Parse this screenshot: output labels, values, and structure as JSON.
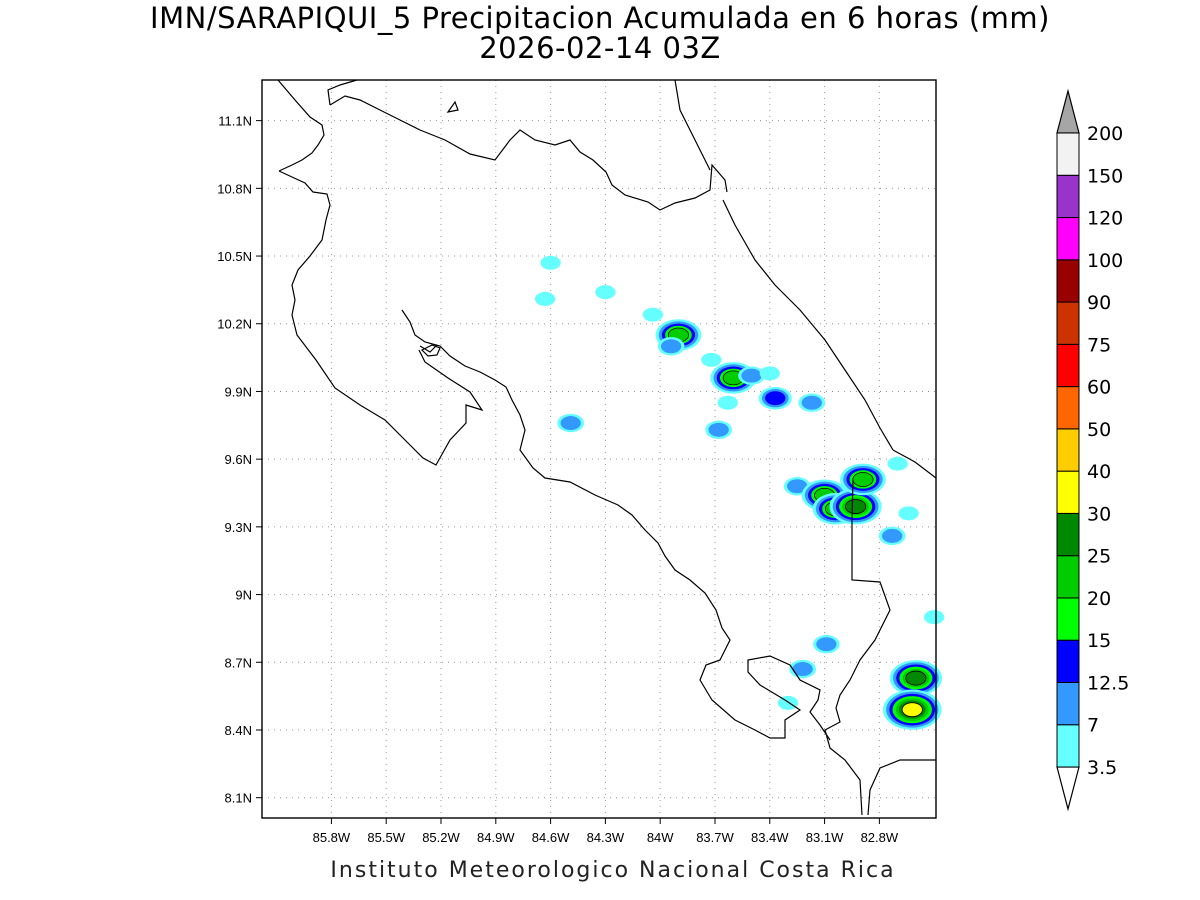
{
  "title": {
    "line1": "IMN/SARAPIQUI_5 Precipitacion Acumulada en 6 horas (mm)",
    "line2": "2026-02-14 03Z"
  },
  "footer": "Instituto Meteorologico Nacional Costa Rica",
  "map": {
    "lon_range": [
      -86.18,
      -82.49
    ],
    "lat_range": [
      8.01,
      11.28
    ],
    "grid": true,
    "lon_ticks": [
      {
        "v": -85.8,
        "label": "85.8W"
      },
      {
        "v": -85.5,
        "label": "85.5W"
      },
      {
        "v": -85.2,
        "label": "85.2W"
      },
      {
        "v": -84.9,
        "label": "84.9W"
      },
      {
        "v": -84.6,
        "label": "84.6W"
      },
      {
        "v": -84.3,
        "label": "84.3W"
      },
      {
        "v": -84.0,
        "label": "84W"
      },
      {
        "v": -83.7,
        "label": "83.7W"
      },
      {
        "v": -83.4,
        "label": "83.4W"
      },
      {
        "v": -83.1,
        "label": "83.1W"
      },
      {
        "v": -82.8,
        "label": "82.8W"
      }
    ],
    "lat_ticks": [
      {
        "v": 11.1,
        "label": "11.1N"
      },
      {
        "v": 10.8,
        "label": "10.8N"
      },
      {
        "v": 10.5,
        "label": "10.5N"
      },
      {
        "v": 10.2,
        "label": "10.2N"
      },
      {
        "v": 9.9,
        "label": "9.9N"
      },
      {
        "v": 9.6,
        "label": "9.6N"
      },
      {
        "v": 9.3,
        "label": "9.3N"
      },
      {
        "v": 9.0,
        "label": "9N"
      },
      {
        "v": 8.7,
        "label": "8.7N"
      },
      {
        "v": 8.4,
        "label": "8.4N"
      },
      {
        "v": 8.1,
        "label": "8.1N"
      }
    ]
  },
  "colorbar": {
    "levels": [
      {
        "label": "3.5",
        "color": "#66ffff"
      },
      {
        "label": "7",
        "color": "#3399ff"
      },
      {
        "label": "12.5",
        "color": "#0000ff"
      },
      {
        "label": "15",
        "color": "#00ff00"
      },
      {
        "label": "20",
        "color": "#00cc00"
      },
      {
        "label": "25",
        "color": "#008800"
      },
      {
        "label": "30",
        "color": "#ffff00"
      },
      {
        "label": "40",
        "color": "#ffcc00"
      },
      {
        "label": "50",
        "color": "#ff6600"
      },
      {
        "label": "60",
        "color": "#ff0000"
      },
      {
        "label": "75",
        "color": "#cc3300"
      },
      {
        "label": "90",
        "color": "#990000"
      },
      {
        "label": "100",
        "color": "#ff00ff"
      },
      {
        "label": "120",
        "color": "#9933cc"
      },
      {
        "label": "150",
        "color": "#f2f2f2"
      },
      {
        "label": "200",
        "color": "#a6a6a6"
      }
    ]
  },
  "chart_data": {
    "type": "heatmap",
    "title": "IMN/SARAPIQUI_5 Precipitacion Acumulada en 6 horas (mm)",
    "xlim": [
      -86.18,
      -82.49
    ],
    "ylim": [
      8.01,
      11.28
    ],
    "precip_cells": [
      {
        "lon": -84.04,
        "lat": 10.24,
        "mm": 3.5
      },
      {
        "lon": -83.9,
        "lat": 10.15,
        "mm": 20
      },
      {
        "lon": -83.94,
        "lat": 10.1,
        "mm": 7
      },
      {
        "lon": -83.72,
        "lat": 10.04,
        "mm": 3.5
      },
      {
        "lon": -83.6,
        "lat": 9.96,
        "mm": 20
      },
      {
        "lon": -83.5,
        "lat": 9.97,
        "mm": 7
      },
      {
        "lon": -83.4,
        "lat": 9.98,
        "mm": 3.5
      },
      {
        "lon": -83.63,
        "lat": 9.85,
        "mm": 3.5
      },
      {
        "lon": -83.37,
        "lat": 9.87,
        "mm": 12.5
      },
      {
        "lon": -83.68,
        "lat": 9.73,
        "mm": 7
      },
      {
        "lon": -83.17,
        "lat": 9.85,
        "mm": 7
      },
      {
        "lon": -84.49,
        "lat": 9.76,
        "mm": 7
      },
      {
        "lon": -83.25,
        "lat": 9.48,
        "mm": 7
      },
      {
        "lon": -83.1,
        "lat": 9.44,
        "mm": 20
      },
      {
        "lon": -83.04,
        "lat": 9.38,
        "mm": 20
      },
      {
        "lon": -82.93,
        "lat": 9.39,
        "mm": 25
      },
      {
        "lon": -82.89,
        "lat": 9.51,
        "mm": 20
      },
      {
        "lon": -82.7,
        "lat": 9.58,
        "mm": 3.5
      },
      {
        "lon": -82.64,
        "lat": 9.36,
        "mm": 3.5
      },
      {
        "lon": -82.73,
        "lat": 9.26,
        "mm": 7
      },
      {
        "lon": -83.09,
        "lat": 8.78,
        "mm": 7
      },
      {
        "lon": -83.22,
        "lat": 8.67,
        "mm": 7
      },
      {
        "lon": -82.6,
        "lat": 8.63,
        "mm": 25
      },
      {
        "lon": -82.62,
        "lat": 8.49,
        "mm": 30
      },
      {
        "lon": -83.3,
        "lat": 8.52,
        "mm": 3.5
      },
      {
        "lon": -82.5,
        "lat": 8.9,
        "mm": 3.5
      },
      {
        "lon": -84.6,
        "lat": 10.47,
        "mm": 3.5
      },
      {
        "lon": -84.63,
        "lat": 10.31,
        "mm": 3.5
      },
      {
        "lon": -84.3,
        "lat": 10.34,
        "mm": 3.5
      }
    ]
  }
}
